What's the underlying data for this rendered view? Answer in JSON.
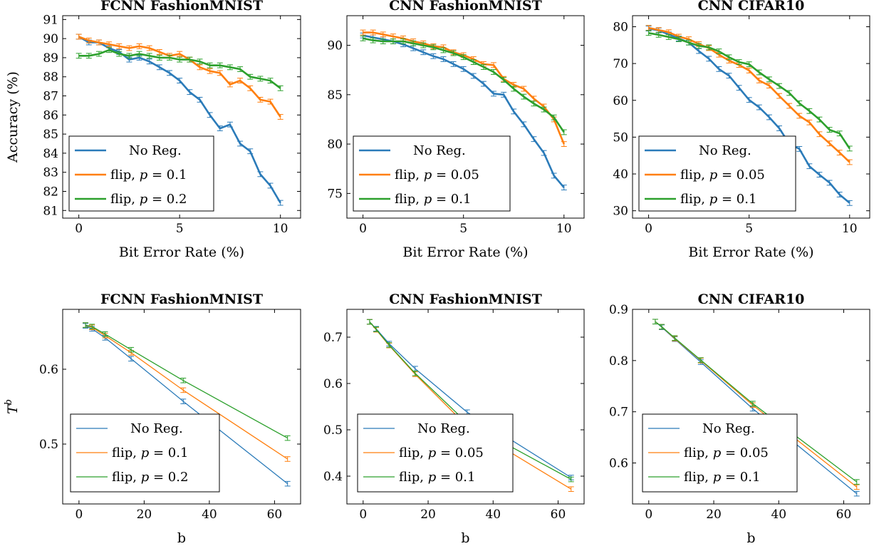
{
  "colors": {
    "blue": "#2b7bb9",
    "orange": "#ff7f0e",
    "green": "#2ca02c"
  },
  "chart_data": [
    {
      "type": "line",
      "title": "FCNN FashionMNIST",
      "xlabel": "Bit Error Rate (%)",
      "ylabel": "Accuracy (%)",
      "xlim": [
        -0.8,
        11
      ],
      "ylim": [
        80.6,
        91.2
      ],
      "xticks": [
        "0",
        "5",
        "10"
      ],
      "xtick_values": [
        0,
        5,
        10
      ],
      "yticks": [
        "81",
        "82",
        "83",
        "84",
        "85",
        "86",
        "87",
        "88",
        "89",
        "90",
        "91"
      ],
      "ytick_values": [
        81,
        82,
        83,
        84,
        85,
        86,
        87,
        88,
        89,
        90,
        91
      ],
      "legend_position": "bottom-left",
      "x": [
        0,
        0.5,
        1,
        1.5,
        2,
        2.5,
        3,
        3.5,
        4,
        4.5,
        5,
        5.5,
        6,
        6.5,
        7,
        7.5,
        8,
        8.5,
        9,
        9.5,
        10
      ],
      "series": [
        {
          "name": "No Reg.",
          "color": "blue",
          "values": [
            90.1,
            89.8,
            89.8,
            89.5,
            89.3,
            88.9,
            89.0,
            88.8,
            88.5,
            88.2,
            87.8,
            87.2,
            86.8,
            86.0,
            85.3,
            85.5,
            84.5,
            84.1,
            82.9,
            82.3,
            81.4
          ]
        },
        {
          "name": "flip, p = 0.1",
          "color": "orange",
          "values": [
            90.1,
            89.9,
            89.8,
            89.7,
            89.6,
            89.5,
            89.6,
            89.5,
            89.3,
            89.1,
            89.2,
            88.9,
            88.5,
            88.3,
            88.2,
            87.6,
            87.8,
            87.4,
            86.8,
            86.7,
            85.9
          ]
        },
        {
          "name": "flip, p = 0.2",
          "color": "green",
          "values": [
            89.1,
            89.1,
            89.2,
            89.4,
            89.2,
            89.1,
            89.2,
            89.1,
            89.0,
            89.0,
            88.9,
            88.9,
            88.8,
            88.6,
            88.6,
            88.5,
            88.4,
            88.0,
            87.9,
            87.8,
            87.4
          ]
        }
      ]
    },
    {
      "type": "line",
      "title": "CNN FashionMNIST",
      "xlabel": "Bit Error Rate (%)",
      "ylabel": "",
      "xlim": [
        -0.8,
        11
      ],
      "ylim": [
        72.5,
        93
      ],
      "xticks": [
        "0",
        "5",
        "10"
      ],
      "xtick_values": [
        0,
        5,
        10
      ],
      "yticks": [
        "75",
        "80",
        "85",
        "90"
      ],
      "ytick_values": [
        75,
        80,
        85,
        90
      ],
      "legend_position": "bottom-left",
      "x": [
        0,
        0.5,
        1,
        1.5,
        2,
        2.5,
        3,
        3.5,
        4,
        4.5,
        5,
        5.5,
        6,
        6.5,
        7,
        7.5,
        8,
        8.5,
        9,
        9.5,
        10
      ],
      "series": [
        {
          "name": "No Reg.",
          "color": "blue",
          "values": [
            91.0,
            90.8,
            90.6,
            90.4,
            90.1,
            89.7,
            89.3,
            88.9,
            88.6,
            88.1,
            87.6,
            86.9,
            86.1,
            85.1,
            85.0,
            83.3,
            82.0,
            80.5,
            79.1,
            76.8,
            75.6
          ]
        },
        {
          "name": "flip, p = 0.05",
          "color": "orange",
          "values": [
            91.3,
            91.3,
            91.1,
            90.9,
            90.7,
            90.4,
            90.2,
            89.9,
            89.8,
            89.3,
            89.0,
            88.6,
            88.1,
            88.0,
            86.6,
            86.0,
            85.6,
            84.6,
            83.8,
            82.5,
            80.0
          ]
        },
        {
          "name": "flip, p = 0.1",
          "color": "green",
          "values": [
            90.7,
            90.5,
            90.4,
            90.4,
            90.4,
            90.2,
            90.0,
            89.8,
            89.5,
            89.2,
            88.8,
            88.3,
            87.8,
            87.3,
            86.5,
            85.6,
            84.8,
            84.1,
            83.5,
            82.7,
            81.2
          ]
        }
      ]
    },
    {
      "type": "line",
      "title": "CNN CIFAR10",
      "xlabel": "Bit Error Rate (%)",
      "ylabel": "",
      "xlim": [
        -0.8,
        11
      ],
      "ylim": [
        28,
        83
      ],
      "xticks": [
        "0",
        "5",
        "10"
      ],
      "xtick_values": [
        0,
        5,
        10
      ],
      "yticks": [
        "30",
        "40",
        "50",
        "60",
        "70",
        "80"
      ],
      "ytick_values": [
        30,
        40,
        50,
        60,
        70,
        80
      ],
      "legend_position": "bottom-left",
      "x": [
        0,
        0.5,
        1,
        1.5,
        2,
        2.5,
        3,
        3.5,
        4,
        4.5,
        5,
        5.5,
        6,
        6.5,
        7,
        7.5,
        8,
        8.5,
        9,
        9.5,
        10
      ],
      "series": [
        {
          "name": "No Reg.",
          "color": "blue",
          "values": [
            79.5,
            79.0,
            77.9,
            76.8,
            75.7,
            73.4,
            71.3,
            68.5,
            66.7,
            63.4,
            60.1,
            58.1,
            55.4,
            52.4,
            48.2,
            46.8,
            42.1,
            39.8,
            37.6,
            34.4,
            32.1
          ]
        },
        {
          "name": "flip, p = 0.05",
          "color": "orange",
          "values": [
            79.7,
            79.1,
            78.5,
            77.3,
            76.6,
            75.3,
            74.2,
            72.4,
            70.8,
            69.6,
            68.1,
            65.4,
            64.0,
            61.2,
            58.5,
            55.8,
            54.0,
            50.8,
            48.3,
            45.8,
            43.2
          ]
        },
        {
          "name": "flip, p = 0.1",
          "color": "green",
          "values": [
            78.3,
            77.8,
            77.2,
            76.6,
            75.7,
            74.8,
            74.4,
            73.3,
            71.7,
            70.4,
            69.8,
            67.6,
            65.7,
            63.9,
            62.0,
            59.2,
            57.1,
            54.8,
            52.0,
            51.0,
            46.9
          ]
        }
      ]
    },
    {
      "type": "line",
      "title": "FCNN FashionMNIST",
      "xlabel": "b",
      "ylabel": "T^b",
      "xlim": [
        -5,
        68
      ],
      "ylim": [
        0.42,
        0.68
      ],
      "xticks": [
        "0",
        "20",
        "40",
        "60"
      ],
      "xtick_values": [
        0,
        20,
        40,
        60
      ],
      "yticks": [
        "0.5",
        "0.6"
      ],
      "ytick_values": [
        0.5,
        0.6
      ],
      "legend_position": "bottom-left",
      "x": [
        2,
        4,
        8,
        16,
        32,
        64
      ],
      "series": [
        {
          "name": "No Reg.",
          "color": "blue",
          "values": [
            0.658,
            0.654,
            0.642,
            0.614,
            0.557,
            0.447
          ]
        },
        {
          "name": "flip, p = 0.1",
          "color": "orange",
          "values": [
            0.659,
            0.656,
            0.645,
            0.622,
            0.572,
            0.48
          ]
        },
        {
          "name": "flip, p = 0.2",
          "color": "green",
          "values": [
            0.659,
            0.657,
            0.647,
            0.626,
            0.585,
            0.508
          ]
        }
      ]
    },
    {
      "type": "line",
      "title": "CNN FashionMNIST",
      "xlabel": "b",
      "ylabel": "",
      "xlim": [
        -5,
        68
      ],
      "ylim": [
        0.34,
        0.76
      ],
      "xticks": [
        "0",
        "20",
        "40",
        "60"
      ],
      "xtick_values": [
        0,
        20,
        40,
        60
      ],
      "yticks": [
        "0.4",
        "0.5",
        "0.6",
        "0.7"
      ],
      "ytick_values": [
        0.4,
        0.5,
        0.6,
        0.7
      ],
      "legend_position": "bottom-left",
      "x": [
        2,
        4,
        8,
        16,
        32,
        64
      ],
      "series": [
        {
          "name": "No Reg.",
          "color": "blue",
          "values": [
            0.733,
            0.718,
            0.686,
            0.632,
            0.538,
            0.397
          ]
        },
        {
          "name": "flip, p = 0.05",
          "color": "orange",
          "values": [
            0.733,
            0.716,
            0.682,
            0.62,
            0.508,
            0.372
          ]
        },
        {
          "name": "flip, p = 0.1",
          "color": "green",
          "values": [
            0.733,
            0.717,
            0.683,
            0.622,
            0.515,
            0.393
          ]
        }
      ]
    },
    {
      "type": "line",
      "title": "CNN CIFAR10",
      "xlabel": "b",
      "ylabel": "",
      "xlim": [
        -5,
        68
      ],
      "ylim": [
        0.52,
        0.9
      ],
      "xticks": [
        "0",
        "20",
        "40",
        "60"
      ],
      "xtick_values": [
        0,
        20,
        40,
        60
      ],
      "yticks": [
        "0.6",
        "0.7",
        "0.8",
        "0.9"
      ],
      "ytick_values": [
        0.6,
        0.7,
        0.8,
        0.9
      ],
      "legend_position": "bottom-left",
      "x": [
        2,
        4,
        8,
        16,
        32,
        64
      ],
      "series": [
        {
          "name": "No Reg.",
          "color": "blue",
          "values": [
            0.876,
            0.865,
            0.842,
            0.797,
            0.706,
            0.54
          ]
        },
        {
          "name": "flip, p = 0.05",
          "color": "orange",
          "values": [
            0.876,
            0.866,
            0.843,
            0.8,
            0.713,
            0.553
          ]
        },
        {
          "name": "flip, p = 0.1",
          "color": "green",
          "values": [
            0.876,
            0.866,
            0.844,
            0.801,
            0.716,
            0.563
          ]
        }
      ]
    }
  ]
}
